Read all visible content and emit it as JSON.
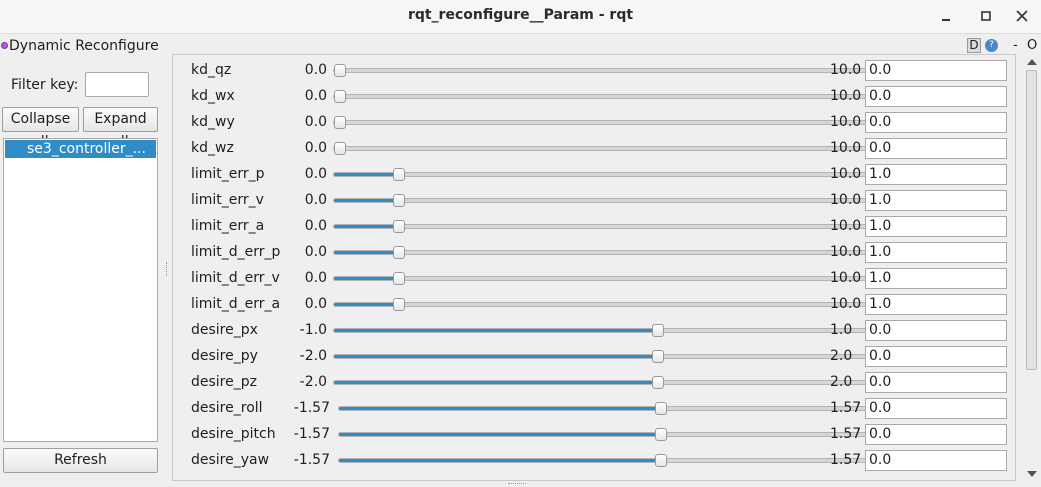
{
  "window": {
    "title": "rqt_reconfigure__Param - rqt",
    "min_symbol": "•",
    "max_symbol": "▫",
    "close_symbol": "✕"
  },
  "plugin": {
    "title": "Dynamic Reconfigure",
    "d_label": "D",
    "x_label": "✕",
    "dash_label": "-",
    "o_label": "O"
  },
  "sidebar": {
    "filter_label": "Filter key:",
    "filter_value": "",
    "collapse_label": "Collapse all",
    "expand_label": "Expand all",
    "tree_items": [
      "se3_controller_..."
    ],
    "refresh_label": "Refresh"
  },
  "params": [
    {
      "name": "kd_qz",
      "min": "0.0",
      "max": "10.0",
      "value": "0.0",
      "fraction": 0.0
    },
    {
      "name": "kd_wx",
      "min": "0.0",
      "max": "10.0",
      "value": "0.0",
      "fraction": 0.0
    },
    {
      "name": "kd_wy",
      "min": "0.0",
      "max": "10.0",
      "value": "0.0",
      "fraction": 0.0
    },
    {
      "name": "kd_wz",
      "min": "0.0",
      "max": "10.0",
      "value": "0.0",
      "fraction": 0.0
    },
    {
      "name": "limit_err_p",
      "min": "0.0",
      "max": "10.0",
      "value": "1.0",
      "fraction": 0.1
    },
    {
      "name": "limit_err_v",
      "min": "0.0",
      "max": "10.0",
      "value": "1.0",
      "fraction": 0.1
    },
    {
      "name": "limit_err_a",
      "min": "0.0",
      "max": "10.0",
      "value": "1.0",
      "fraction": 0.1
    },
    {
      "name": "limit_d_err_p",
      "min": "0.0",
      "max": "10.0",
      "value": "1.0",
      "fraction": 0.1
    },
    {
      "name": "limit_d_err_v",
      "min": "0.0",
      "max": "10.0",
      "value": "1.0",
      "fraction": 0.1
    },
    {
      "name": "limit_d_err_a",
      "min": "0.0",
      "max": "10.0",
      "value": "1.0",
      "fraction": 0.1
    },
    {
      "name": "desire_px",
      "min": "-1.0",
      "max": "1.0",
      "value": "0.0",
      "fraction": 0.5
    },
    {
      "name": "desire_py",
      "min": "-2.0",
      "max": "2.0",
      "value": "0.0",
      "fraction": 0.5
    },
    {
      "name": "desire_pz",
      "min": "-2.0",
      "max": "2.0",
      "value": "0.0",
      "fraction": 0.5
    },
    {
      "name": "desire_roll",
      "min": "-1.57",
      "max": "1.57",
      "value": "0.0",
      "fraction": 0.5
    },
    {
      "name": "desire_pitch",
      "min": "-1.57",
      "max": "1.57",
      "value": "0.0",
      "fraction": 0.5
    },
    {
      "name": "desire_yaw",
      "min": "-1.57",
      "max": "1.57",
      "value": "0.0",
      "fraction": 0.5
    }
  ],
  "colors": {
    "accent": "#308cc6",
    "track": "#d6d6d6",
    "background": "#efefef"
  },
  "icons": {
    "plugin": "plugin-dot-icon",
    "help": "help-icon",
    "close": "close-icon"
  }
}
